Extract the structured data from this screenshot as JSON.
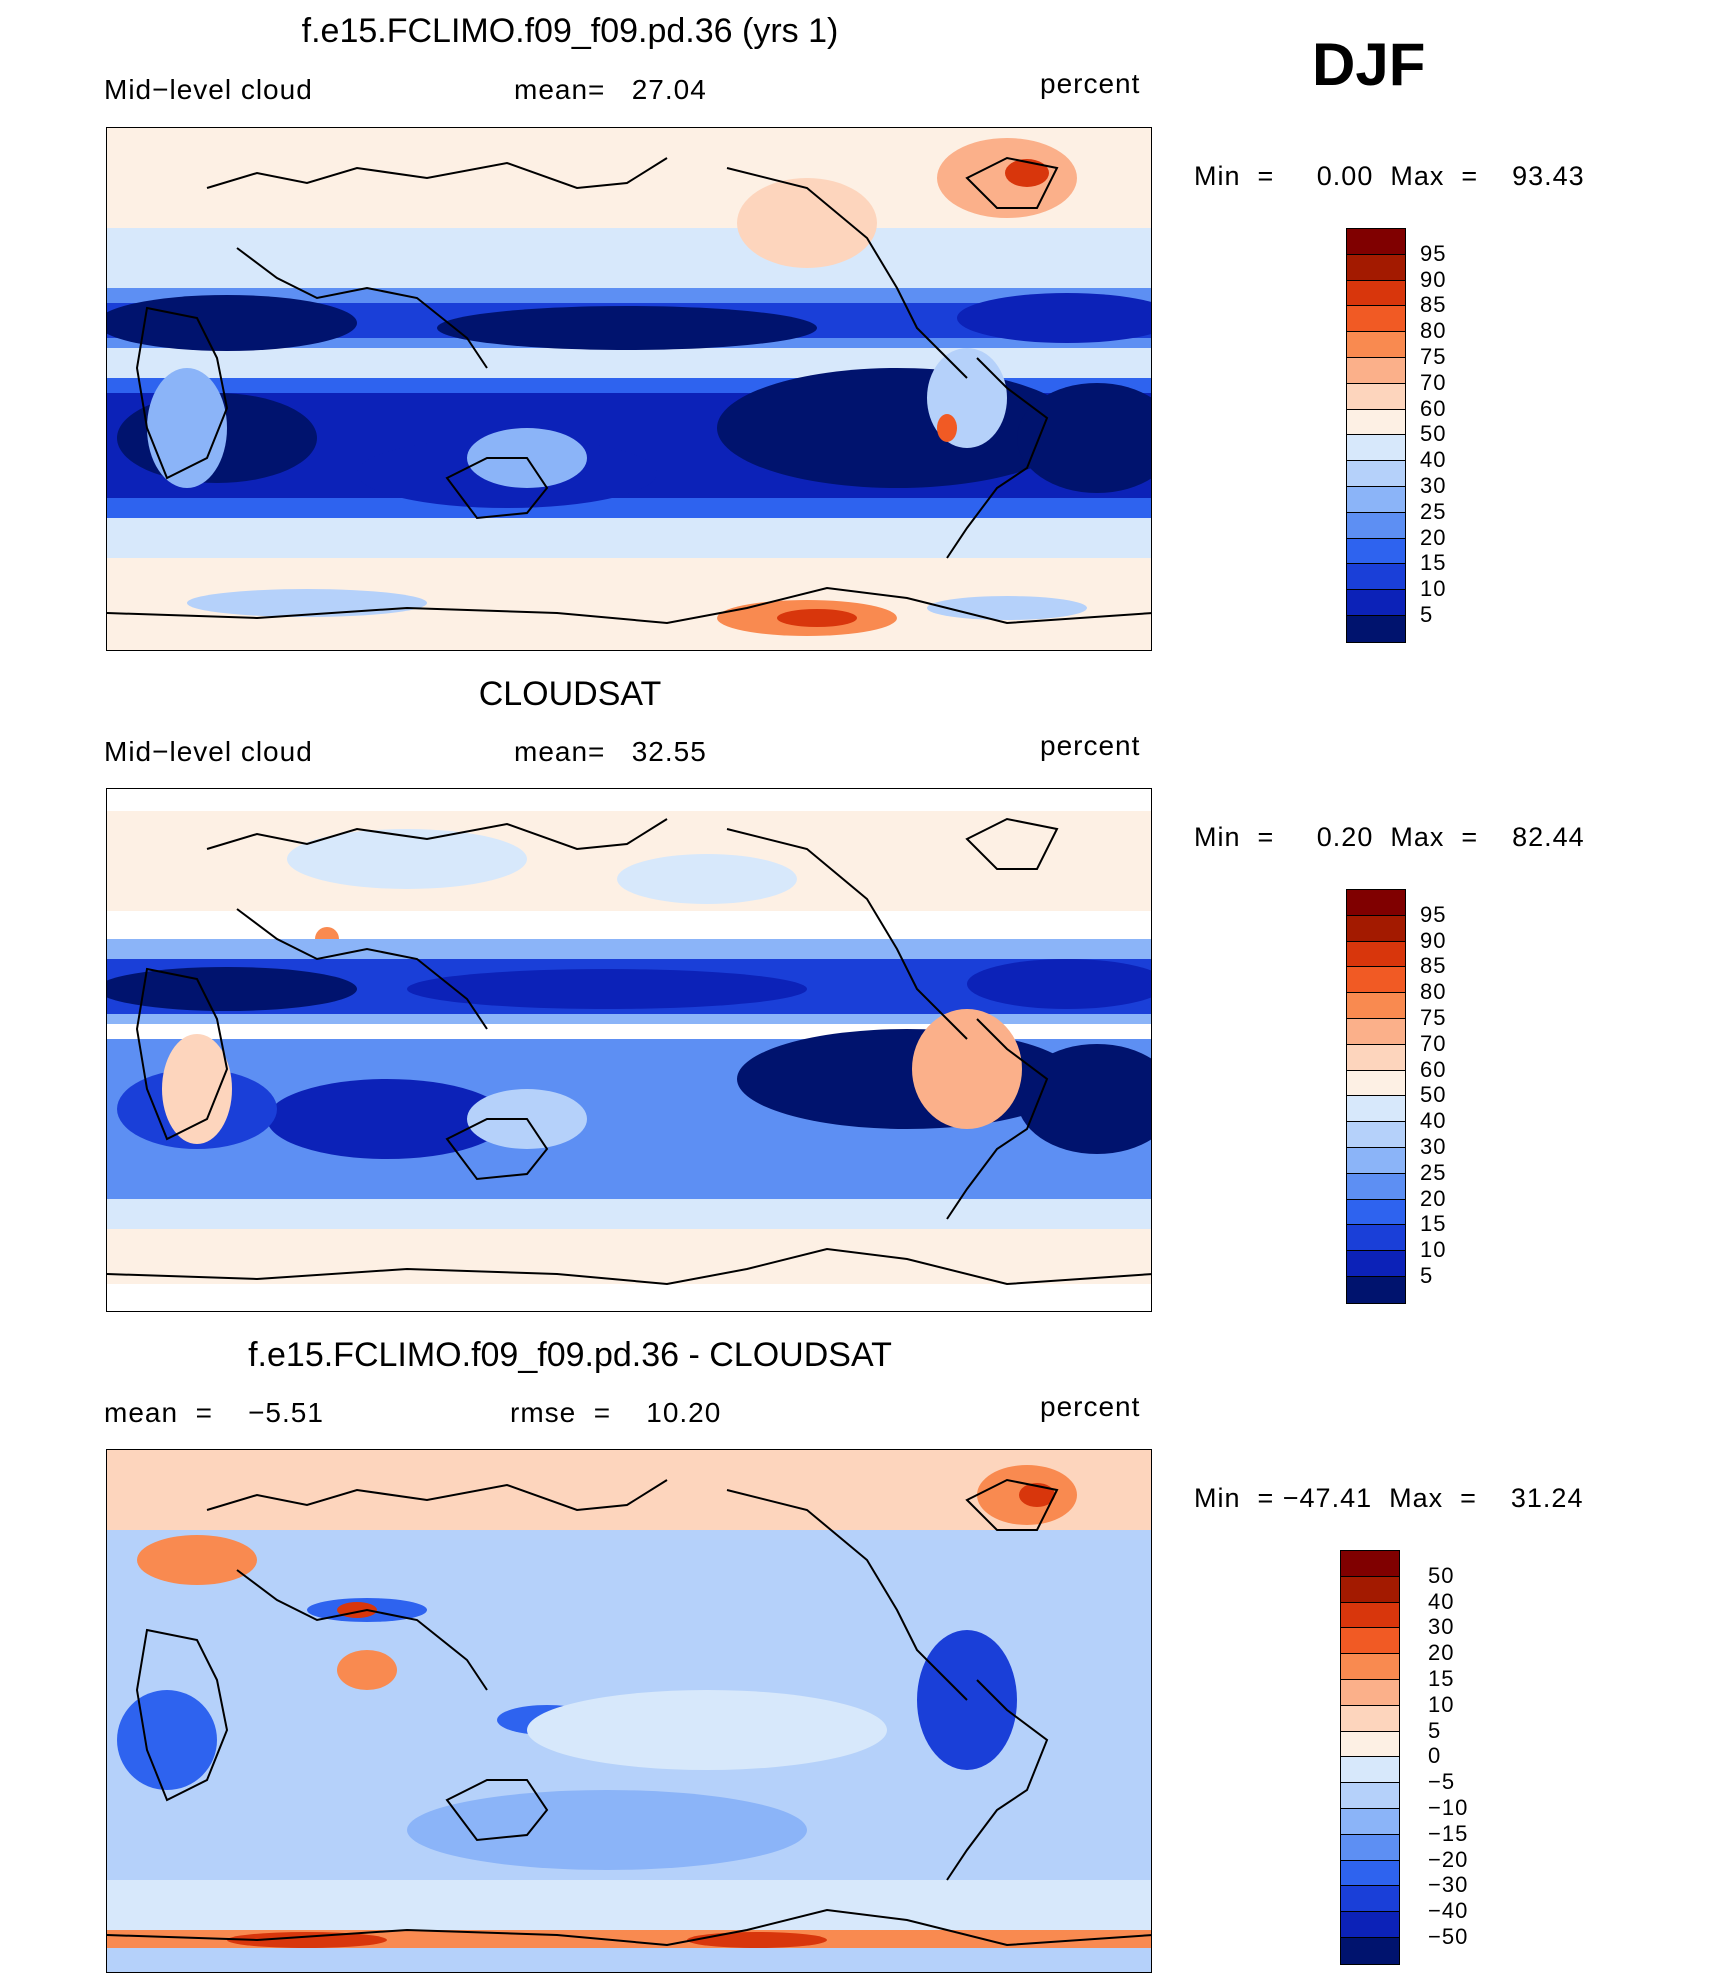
{
  "season": "DJF",
  "panels": [
    {
      "title": "f.e15.FCLIMO.f09_f09.pd.36 (yrs 1)",
      "left_label": "Mid−level cloud",
      "center_label": "mean=   27.04",
      "units": "percent",
      "minmax": "Min  =     0.00  Max  =    93.43",
      "colorbar_labels": [
        "95",
        "90",
        "85",
        "80",
        "75",
        "70",
        "60",
        "50",
        "40",
        "30",
        "25",
        "20",
        "15",
        "10",
        "5"
      ],
      "colorbar_colors": [
        "#800000",
        "#a31a00",
        "#d8360c",
        "#f15a24",
        "#f98a50",
        "#fbb08a",
        "#fdd5bd",
        "#fdf0e4",
        "#d7e8fb",
        "#b5d1fa",
        "#8bb4f8",
        "#5d8ff3",
        "#2e63ef",
        "#1a3fd8",
        "#0c22b8",
        "#00136e"
      ]
    },
    {
      "title": "CLOUDSAT",
      "left_label": "Mid−level cloud",
      "center_label": "mean=   32.55",
      "units": "percent",
      "minmax": "Min  =     0.20  Max  =    82.44",
      "colorbar_labels": [
        "95",
        "90",
        "85",
        "80",
        "75",
        "70",
        "60",
        "50",
        "40",
        "30",
        "25",
        "20",
        "15",
        "10",
        "5"
      ],
      "colorbar_colors": [
        "#800000",
        "#a31a00",
        "#d8360c",
        "#f15a24",
        "#f98a50",
        "#fbb08a",
        "#fdd5bd",
        "#fdf0e4",
        "#d7e8fb",
        "#b5d1fa",
        "#8bb4f8",
        "#5d8ff3",
        "#2e63ef",
        "#1a3fd8",
        "#0c22b8",
        "#00136e"
      ]
    },
    {
      "title": "f.e15.FCLIMO.f09_f09.pd.36 - CLOUDSAT",
      "left_label": "mean  =    −5.51",
      "center_label": "rmse  =    10.20",
      "units": "percent",
      "minmax": "Min  = −47.41  Max  =    31.24",
      "colorbar_labels": [
        "50",
        "40",
        "30",
        "20",
        "15",
        "10",
        "5",
        "0",
        "−5",
        "−10",
        "−15",
        "−20",
        "−30",
        "−40",
        "−50"
      ],
      "colorbar_colors": [
        "#800000",
        "#a31a00",
        "#d8360c",
        "#f15a24",
        "#f98a50",
        "#fbb08a",
        "#fdd5bd",
        "#fdf0e4",
        "#d7e8fb",
        "#b5d1fa",
        "#8bb4f8",
        "#5d8ff3",
        "#2e63ef",
        "#1a3fd8",
        "#0c22b8",
        "#00136e"
      ]
    }
  ]
}
